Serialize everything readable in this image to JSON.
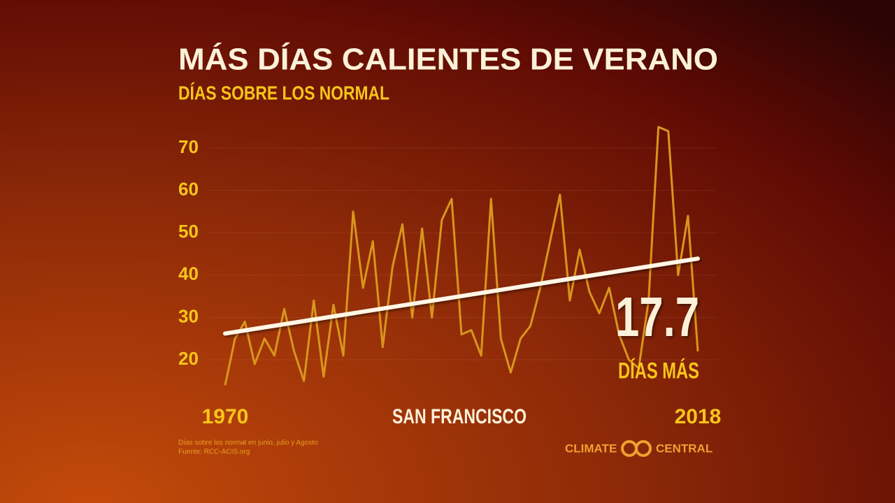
{
  "chart_data": {
    "type": "line",
    "title": "MÁS DÍAS CALIENTES DE VERANO",
    "subtitle": "DÍAS SOBRE LOS NORMAL",
    "x_label": "SAN FRANCISCO",
    "x": [
      1970,
      1971,
      1972,
      1973,
      1974,
      1975,
      1976,
      1977,
      1978,
      1979,
      1980,
      1981,
      1982,
      1983,
      1984,
      1985,
      1986,
      1987,
      1988,
      1989,
      1990,
      1991,
      1992,
      1993,
      1994,
      1995,
      1996,
      1997,
      1998,
      1999,
      2000,
      2001,
      2002,
      2003,
      2004,
      2005,
      2006,
      2007,
      2008,
      2009,
      2010,
      2011,
      2012,
      2013,
      2014,
      2015,
      2016,
      2017,
      2018
    ],
    "series": [
      {
        "name": "Días sobre lo normal",
        "color": "#d8961c",
        "values": [
          14,
          25,
          29,
          19,
          25,
          21,
          32,
          22,
          15,
          34,
          16,
          33,
          21,
          55,
          37,
          48,
          23,
          42,
          52,
          30,
          51,
          30,
          53,
          58,
          26,
          27,
          21,
          58,
          25,
          17,
          25,
          28,
          37,
          48,
          59,
          34,
          46,
          36,
          31,
          37,
          26,
          20,
          18,
          34,
          75,
          74,
          40,
          54,
          22
        ]
      }
    ],
    "trend": {
      "color": "#fff6e6",
      "x": [
        1970,
        2018
      ],
      "values": [
        26.2,
        43.9
      ]
    },
    "annotation": {
      "value": "17.7",
      "label": "DÍAS MÁS"
    },
    "xlim": [
      1970,
      2018
    ],
    "xticks": [
      1970,
      2018
    ],
    "ylim": [
      10,
      80
    ],
    "yticks": [
      20,
      30,
      40,
      50,
      60,
      70
    ],
    "grid": true,
    "footnote": [
      "Días sobre los normal en junio, julio y Agosto",
      "Fuente: RCC-ACIS.org"
    ],
    "logo": [
      "CLIMATE",
      "CENTRAL"
    ]
  }
}
